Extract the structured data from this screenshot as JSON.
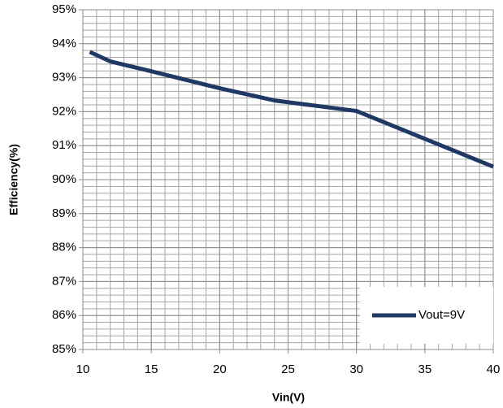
{
  "chart_data": {
    "type": "line",
    "x_label": "Vin(V)",
    "y_label": "Efficiency(%)",
    "x": [
      10.5,
      12,
      15,
      20,
      24,
      30,
      35,
      40
    ],
    "series": [
      {
        "name": "Vout=9V",
        "color": "#203864",
        "values": [
          93.76,
          93.48,
          93.19,
          92.69,
          92.33,
          92.02,
          91.2,
          90.38
        ]
      }
    ],
    "xlim": [
      10,
      40
    ],
    "xticks": [
      10,
      15,
      20,
      25,
      30,
      35,
      40
    ],
    "ylim": [
      85,
      95
    ],
    "yticks": [
      {
        "value": 85,
        "label": "85%"
      },
      {
        "value": 86,
        "label": "86%"
      },
      {
        "value": 87,
        "label": "87%"
      },
      {
        "value": 88,
        "label": "88%"
      },
      {
        "value": 89,
        "label": "89%"
      },
      {
        "value": 90,
        "label": "90%"
      },
      {
        "value": 91,
        "label": "91%"
      },
      {
        "value": 92,
        "label": "92%"
      },
      {
        "value": 93,
        "label": "93%"
      },
      {
        "value": 94,
        "label": "94%"
      },
      {
        "value": 95,
        "label": "95%"
      }
    ],
    "grid": true,
    "x_minor_step": 1,
    "y_minor_step": 0.2,
    "legend": "lower right"
  }
}
